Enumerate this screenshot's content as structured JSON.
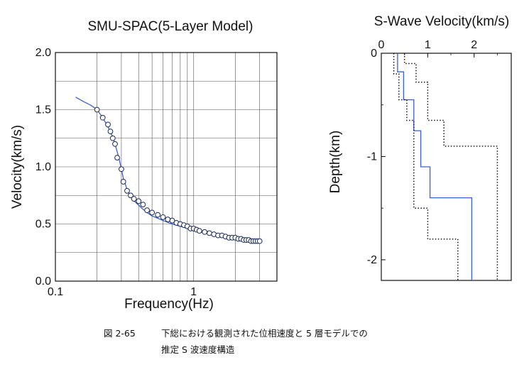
{
  "chart_data": [
    {
      "type": "scatter",
      "title": "SMU-SPAC(5-Layer Model)",
      "xlabel": "Frequency(Hz)",
      "ylabel": "Velocity(km/s)",
      "xscale": "log",
      "xlim": [
        0.1,
        4
      ],
      "ylim": [
        0,
        2.0
      ],
      "xticks": [
        {
          "value": 0.1,
          "label": "0.1"
        },
        {
          "value": 1,
          "label": "1"
        }
      ],
      "yticks": [
        {
          "value": 0.0,
          "label": "0.0"
        },
        {
          "value": 0.5,
          "label": "0.5"
        },
        {
          "value": 1.0,
          "label": "1.0"
        },
        {
          "value": 1.5,
          "label": "1.5"
        },
        {
          "value": 2.0,
          "label": "2.0"
        }
      ],
      "grid": true,
      "series": [
        {
          "kind": "line",
          "color": "#3a5fd0",
          "x": [
            0.14,
            0.16,
            0.18,
            0.2,
            0.22,
            0.24,
            0.26,
            0.27,
            0.28,
            0.29,
            0.3,
            0.31,
            0.33,
            0.35,
            0.38,
            0.42,
            0.46,
            0.5,
            0.55,
            0.6,
            0.7,
            0.8,
            0.9,
            1.0,
            1.2,
            1.4,
            1.7,
            2.0,
            2.4,
            3.0
          ],
          "y": [
            1.61,
            1.57,
            1.54,
            1.5,
            1.43,
            1.35,
            1.26,
            1.2,
            1.13,
            1.06,
            0.98,
            0.9,
            0.8,
            0.74,
            0.69,
            0.64,
            0.6,
            0.57,
            0.55,
            0.53,
            0.5,
            0.48,
            0.46,
            0.44,
            0.42,
            0.4,
            0.38,
            0.37,
            0.36,
            0.35
          ]
        },
        {
          "kind": "markers",
          "marker": "open-circle",
          "x": [
            0.2,
            0.22,
            0.24,
            0.25,
            0.26,
            0.27,
            0.28,
            0.3,
            0.31,
            0.33,
            0.35,
            0.37,
            0.4,
            0.43,
            0.46,
            0.5,
            0.55,
            0.6,
            0.65,
            0.7,
            0.75,
            0.8,
            0.85,
            0.9,
            0.95,
            1.0,
            1.05,
            1.1,
            1.2,
            1.3,
            1.4,
            1.5,
            1.6,
            1.7,
            1.8,
            1.9,
            2.0,
            2.1,
            2.2,
            2.3,
            2.4,
            2.5,
            2.6,
            2.7,
            2.8,
            2.9,
            3.0
          ],
          "y": [
            1.5,
            1.43,
            1.37,
            1.31,
            1.25,
            1.2,
            1.08,
            0.98,
            0.87,
            0.79,
            0.75,
            0.72,
            0.7,
            0.67,
            0.62,
            0.6,
            0.58,
            0.56,
            0.54,
            0.53,
            0.51,
            0.5,
            0.49,
            0.48,
            0.46,
            0.46,
            0.45,
            0.44,
            0.43,
            0.42,
            0.41,
            0.4,
            0.4,
            0.39,
            0.38,
            0.38,
            0.38,
            0.37,
            0.37,
            0.36,
            0.36,
            0.36,
            0.35,
            0.35,
            0.35,
            0.35,
            0.35
          ]
        }
      ]
    },
    {
      "type": "line",
      "title": "S-Wave Velocity(km/s)",
      "ylabel": "Depth(km)",
      "xlabel": "",
      "xlim": [
        0,
        2.8
      ],
      "ylim": [
        -2.2,
        0
      ],
      "xaxis_position": "top",
      "xticks": [
        {
          "value": 0,
          "label": "0"
        },
        {
          "value": 1,
          "label": "1"
        },
        {
          "value": 2,
          "label": "2"
        }
      ],
      "yticks": [
        {
          "value": 0,
          "label": "0"
        },
        {
          "value": -1,
          "label": "-1"
        },
        {
          "value": -2,
          "label": "-2"
        }
      ],
      "grid": false,
      "series": [
        {
          "kind": "step",
          "style": "solid",
          "color": "#3a5fd0",
          "x": [
            0.35,
            0.35,
            0.48,
            0.48,
            0.7,
            0.7,
            0.85,
            0.85,
            1.05,
            1.05,
            1.95,
            1.95
          ],
          "y": [
            0,
            -0.18,
            -0.18,
            -0.45,
            -0.45,
            -0.75,
            -0.75,
            -1.1,
            -1.1,
            -1.4,
            -1.4,
            -2.2
          ]
        },
        {
          "kind": "step",
          "style": "dotted",
          "color": "#111111",
          "x": [
            0.27,
            0.27,
            0.38,
            0.38,
            0.55,
            0.55,
            0.7,
            0.7,
            0.7,
            0.7,
            1.0,
            1.0,
            1.0,
            1.0,
            1.65,
            1.65,
            1.65,
            1.65
          ],
          "y": [
            0,
            -0.2,
            -0.2,
            -0.45,
            -0.45,
            -0.65,
            -0.65,
            -1.05,
            -1.05,
            -1.5,
            -1.5,
            -1.8,
            -1.8,
            -1.8,
            -1.8,
            -2.2,
            -2.2,
            -2.2
          ]
        },
        {
          "kind": "step",
          "style": "dotted",
          "color": "#111111",
          "x": [
            0.5,
            0.5,
            0.75,
            0.75,
            1.0,
            1.0,
            1.35,
            1.35,
            1.7,
            1.7,
            2.5,
            2.5
          ],
          "y": [
            0,
            -0.1,
            -0.1,
            -0.28,
            -0.28,
            -0.65,
            -0.65,
            -0.9,
            -0.9,
            -0.9,
            -0.9,
            -2.2
          ]
        }
      ]
    }
  ],
  "caption": {
    "label": "図 2-65",
    "line1": "下総における観測された位相速度と 5 層モデルでの",
    "line2": "推定 S 波速度構造"
  }
}
